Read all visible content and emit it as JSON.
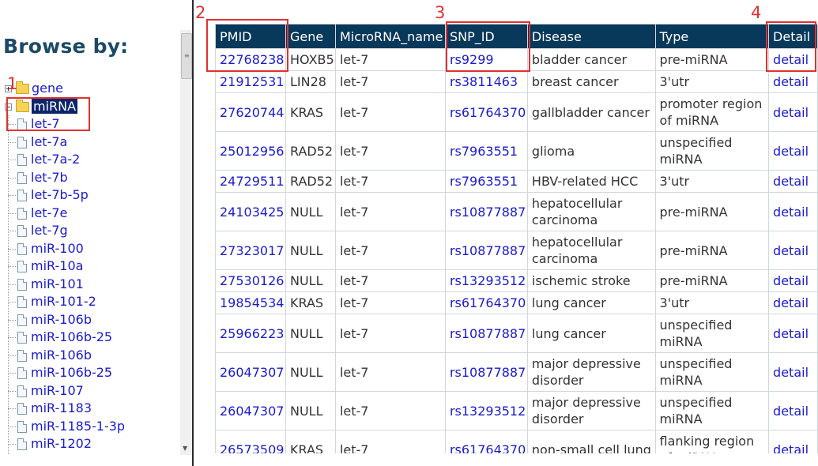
{
  "sidebar": {
    "title": "Browse by:",
    "tree": [
      {
        "label": "gene",
        "type": "folder",
        "expanded": false
      },
      {
        "label": "miRNA",
        "type": "folder",
        "expanded": true,
        "selected": true
      },
      {
        "label": "let-7",
        "type": "doc"
      },
      {
        "label": "let-7a",
        "type": "doc"
      },
      {
        "label": "let-7a-2",
        "type": "doc"
      },
      {
        "label": "let-7b",
        "type": "doc"
      },
      {
        "label": "let-7b-5p",
        "type": "doc"
      },
      {
        "label": "let-7e",
        "type": "doc"
      },
      {
        "label": "let-7g",
        "type": "doc"
      },
      {
        "label": "miR-100",
        "type": "doc"
      },
      {
        "label": "miR-10a",
        "type": "doc"
      },
      {
        "label": "miR-101",
        "type": "doc"
      },
      {
        "label": "miR-101-2",
        "type": "doc"
      },
      {
        "label": "miR-106b",
        "type": "doc"
      },
      {
        "label": "miR-106b-25",
        "type": "doc"
      },
      {
        "label": "miR-106b",
        "type": "doc"
      },
      {
        "label": "miR-106b-25",
        "type": "doc"
      },
      {
        "label": "miR-107",
        "type": "doc"
      },
      {
        "label": "miR-1183",
        "type": "doc"
      },
      {
        "label": "miR-1185-1-3p",
        "type": "doc"
      },
      {
        "label": "miR-1202",
        "type": "doc"
      }
    ]
  },
  "table": {
    "headers": [
      "PMID",
      "Gene",
      "MicroRNA_name",
      "SNP_ID",
      "Disease",
      "Type",
      "Detail"
    ],
    "rows": [
      {
        "pmid": "22768238",
        "gene": "HOXB5",
        "mirna": "let-7",
        "snp": "rs9299",
        "disease": "bladder cancer",
        "type": "pre-miRNA",
        "detail": "detail"
      },
      {
        "pmid": "21912531",
        "gene": "LIN28",
        "mirna": "let-7",
        "snp": "rs3811463",
        "disease": "breast cancer",
        "type": "3'utr",
        "detail": "detail"
      },
      {
        "pmid": "27620744",
        "gene": "KRAS",
        "mirna": "let-7",
        "snp": "rs61764370",
        "disease": "gallbladder cancer",
        "type": "promoter region of miRNA",
        "detail": "detail"
      },
      {
        "pmid": "25012956",
        "gene": "RAD52",
        "mirna": "let-7",
        "snp": "rs7963551",
        "disease": "glioma",
        "type": "unspecified miRNA",
        "detail": "detail"
      },
      {
        "pmid": "24729511",
        "gene": "RAD52",
        "mirna": "let-7",
        "snp": "rs7963551",
        "disease": "HBV-related HCC",
        "type": "3'utr",
        "detail": "detail"
      },
      {
        "pmid": "24103425",
        "gene": "NULL",
        "mirna": "let-7",
        "snp": "rs10877887",
        "disease": "hepatocellular carcinoma",
        "type": "pre-miRNA",
        "detail": "detail"
      },
      {
        "pmid": "27323017",
        "gene": "NULL",
        "mirna": "let-7",
        "snp": "rs10877887",
        "disease": "hepatocellular carcinoma",
        "type": "pre-miRNA",
        "detail": "detail"
      },
      {
        "pmid": "27530126",
        "gene": "NULL",
        "mirna": "let-7",
        "snp": "rs13293512",
        "disease": "ischemic stroke",
        "type": "pre-miRNA",
        "detail": "detail"
      },
      {
        "pmid": "19854534",
        "gene": "KRAS",
        "mirna": "let-7",
        "snp": "rs61764370",
        "disease": "lung cancer",
        "type": "3'utr",
        "detail": "detail"
      },
      {
        "pmid": "25966223",
        "gene": "NULL",
        "mirna": "let-7",
        "snp": "rs10877887",
        "disease": "lung cancer",
        "type": "unspecified miRNA",
        "detail": "detail"
      },
      {
        "pmid": "26047307",
        "gene": "NULL",
        "mirna": "let-7",
        "snp": "rs10877887",
        "disease": "major depressive disorder",
        "type": "unspecified miRNA",
        "detail": "detail"
      },
      {
        "pmid": "26047307",
        "gene": "NULL",
        "mirna": "let-7",
        "snp": "rs13293512",
        "disease": "major depressive disorder",
        "type": "unspecified miRNA",
        "detail": "detail"
      },
      {
        "pmid": "26573509",
        "gene": "KRAS",
        "mirna": "let-7",
        "snp": "rs61764370",
        "disease": "non-small cell lung",
        "type": "flanking region of miRNA",
        "detail": "detail"
      }
    ]
  },
  "annotations": {
    "n1": "1",
    "n2": "2",
    "n3": "3",
    "n4": "4"
  },
  "colors": {
    "header_bg": "#08385a",
    "link": "#1a1acd",
    "highlight": "#e03131",
    "title": "#1c4a66"
  }
}
